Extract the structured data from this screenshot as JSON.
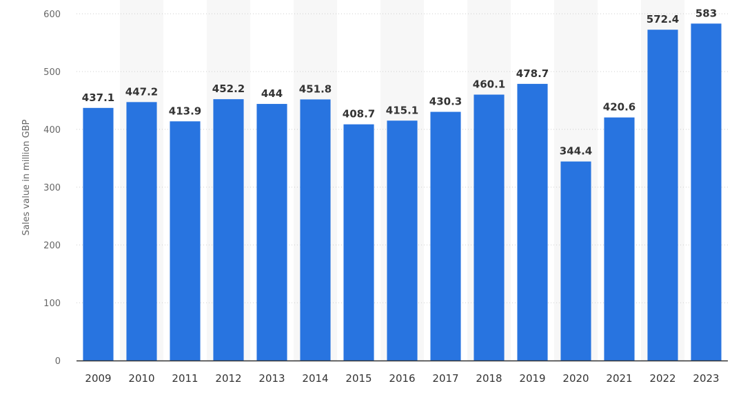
{
  "chart_data": {
    "type": "bar",
    "ylabel": "Sales value in million GBP",
    "xlabel": "",
    "title": "",
    "categories": [
      "2009",
      "2010",
      "2011",
      "2012",
      "2013",
      "2014",
      "2015",
      "2016",
      "2017",
      "2018",
      "2019",
      "2020",
      "2021",
      "2022",
      "2023"
    ],
    "values": [
      437.1,
      447.2,
      413.9,
      452.2,
      444,
      451.8,
      408.7,
      415.1,
      430.3,
      460.1,
      478.7,
      344.4,
      420.6,
      572.4,
      583
    ],
    "value_labels": [
      "437.1",
      "447.2",
      "413.9",
      "452.2",
      "444",
      "451.8",
      "408.7",
      "415.1",
      "430.3",
      "460.1",
      "478.7",
      "344.4",
      "420.6",
      "572.4",
      "583"
    ],
    "ylim": [
      0,
      600
    ],
    "yticks": [
      0,
      100,
      200,
      300,
      400,
      500,
      600
    ],
    "ytick_labels": [
      "0",
      "100",
      "200",
      "300",
      "400",
      "500",
      "600"
    ],
    "grid": true,
    "colors": {
      "bar": "#2874e0",
      "band": "#f7f7f7",
      "grid": "#cccccc",
      "axis": "#333333"
    }
  }
}
